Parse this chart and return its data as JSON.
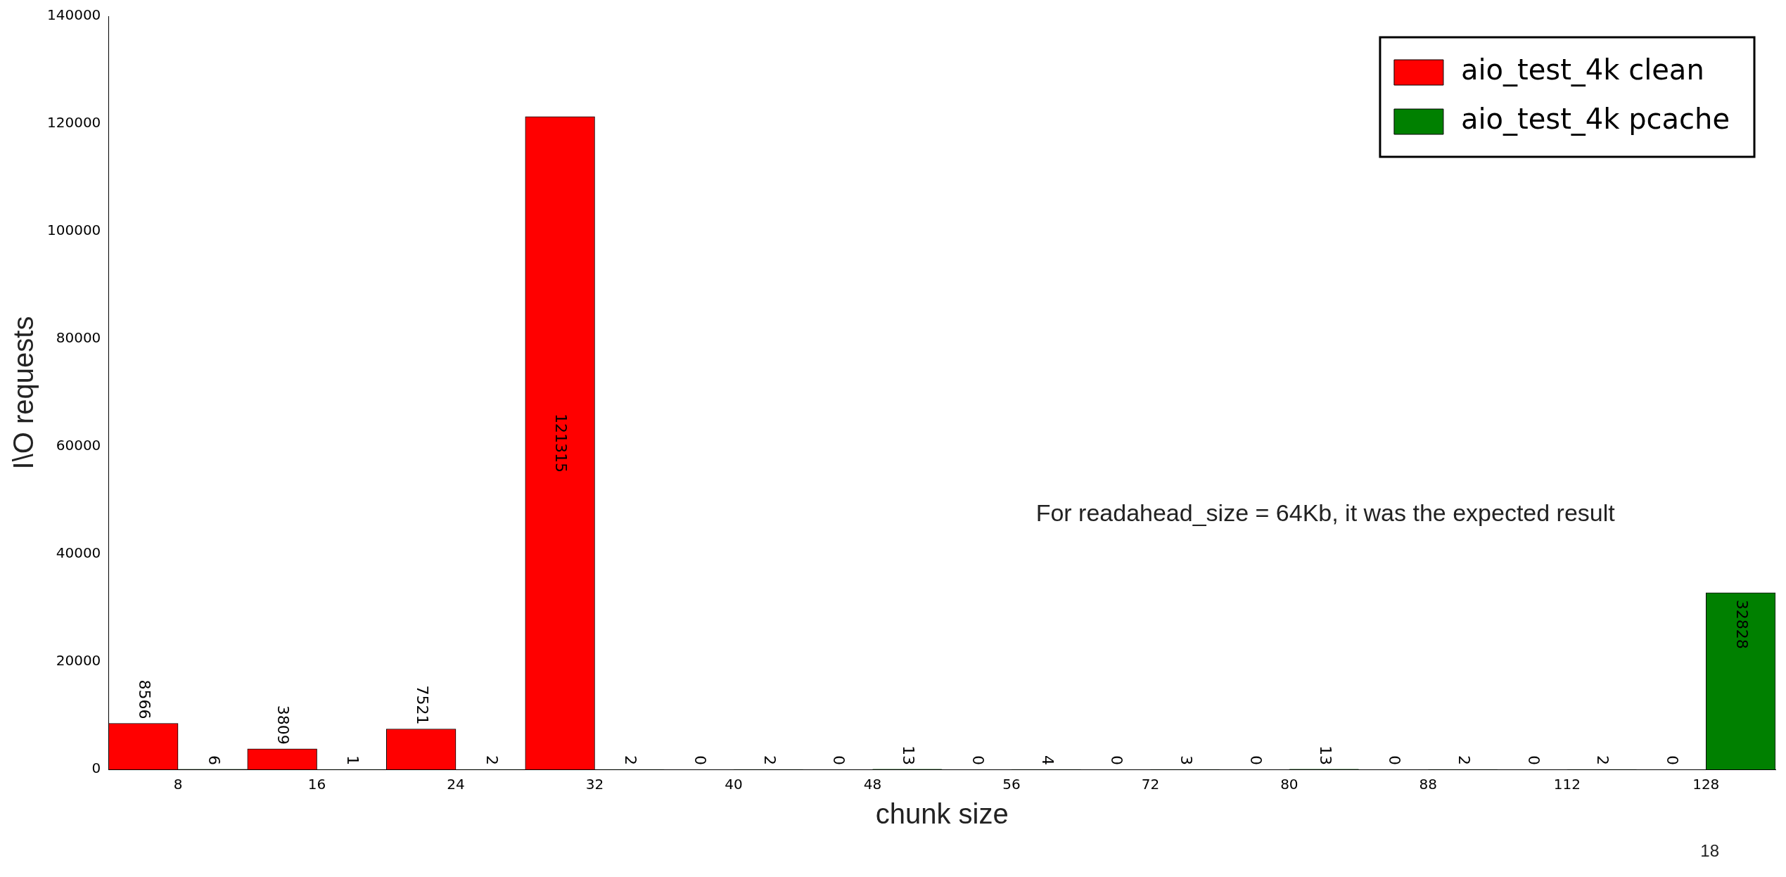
{
  "chart_data": {
    "type": "bar",
    "xlabel": "chunk size",
    "ylabel": "I\\O requests",
    "categories": [
      "8",
      "16",
      "24",
      "32",
      "40",
      "48",
      "56",
      "72",
      "80",
      "88",
      "112",
      "128"
    ],
    "series": [
      {
        "name": "aio_test_4k clean",
        "color": "#ff0000",
        "values": [
          8566,
          3809,
          7521,
          121315,
          0,
          0,
          0,
          0,
          0,
          0,
          0,
          0
        ]
      },
      {
        "name": "aio_test_4k pcache",
        "color": "#008000",
        "values": [
          6,
          1,
          2,
          2,
          2,
          13,
          4,
          3,
          13,
          2,
          2,
          32828
        ]
      }
    ],
    "ylim": [
      0,
      140000
    ],
    "yticks": [
      0,
      20000,
      40000,
      60000,
      80000,
      100000,
      120000,
      140000
    ],
    "grid": false,
    "legend": "top right",
    "data_labels": true,
    "annotations": [
      "For readahead_size = 64Kb, it was the expected result",
      "18"
    ]
  }
}
